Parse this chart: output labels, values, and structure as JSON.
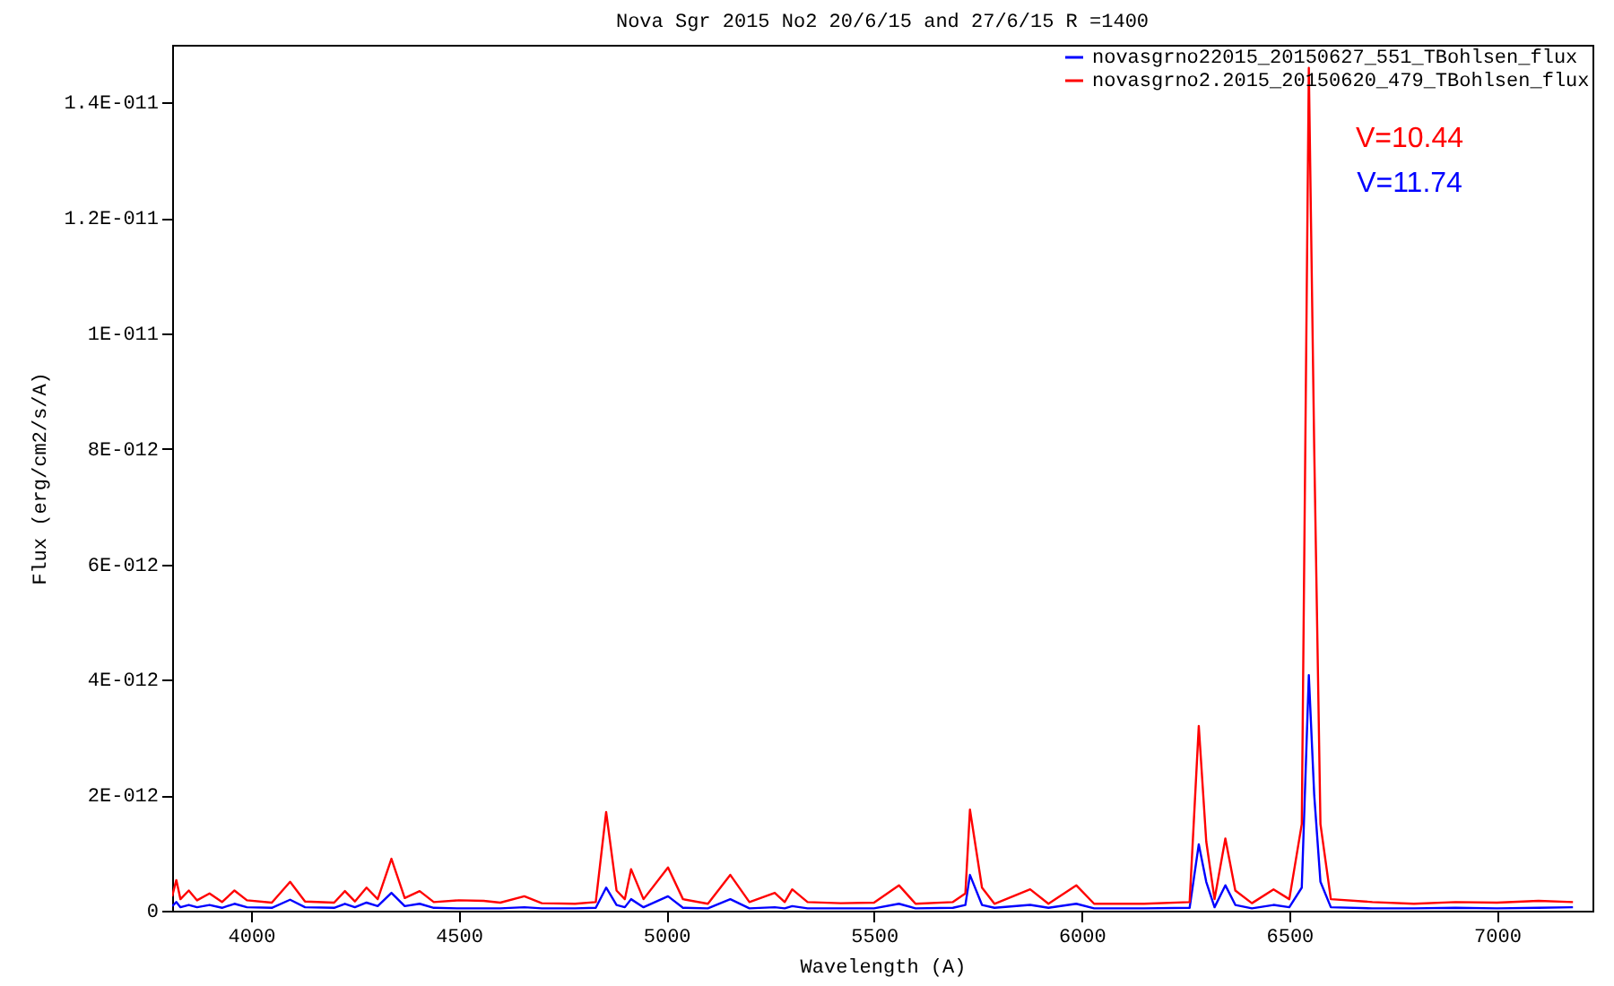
{
  "chart_data": {
    "type": "line",
    "title": "Nova Sgr 2015 No2 20/6/15 and 27/6/15 R =1400",
    "xlabel": "Wavelength (A)",
    "ylabel": "Flux (erg/cm2/s/A)",
    "x": [
      3810,
      3820,
      3830,
      3850,
      3870,
      3900,
      3930,
      3960,
      3990,
      4050,
      4094,
      4130,
      4200,
      4226,
      4250,
      4278,
      4305,
      4338,
      4370,
      4406,
      4440,
      4500,
      4560,
      4600,
      4658,
      4700,
      4780,
      4830,
      4855,
      4880,
      4900,
      4915,
      4945,
      5004,
      5040,
      5100,
      5154,
      5200,
      5261,
      5285,
      5303,
      5340,
      5420,
      5500,
      5560,
      5600,
      5690,
      5720,
      5731,
      5760,
      5790,
      5876,
      5920,
      5987,
      6030,
      6150,
      6260,
      6282,
      6300,
      6320,
      6346,
      6370,
      6410,
      6462,
      6500,
      6530,
      6547,
      6560,
      6575,
      6600,
      6700,
      6800,
      6900,
      7000,
      7100,
      7183
    ],
    "series": [
      {
        "name": "novasgrno22015_20150627_551_TBohlsen_flux",
        "color": "#0000ff",
        "values": [
          8e-14,
          1.5e-13,
          6e-14,
          1e-13,
          6e-14,
          1e-13,
          5e-14,
          1.2e-13,
          6e-14,
          5e-14,
          1.9e-13,
          6e-14,
          5e-14,
          1.2e-13,
          6e-14,
          1.4e-13,
          8e-14,
          3.1e-13,
          8e-14,
          1.2e-13,
          5e-14,
          4e-14,
          4e-14,
          4e-14,
          6e-14,
          4e-14,
          4e-14,
          5e-14,
          4e-13,
          1e-13,
          6e-14,
          2e-13,
          6e-14,
          2.5e-13,
          5e-14,
          4e-14,
          2e-13,
          4e-14,
          6e-14,
          4e-14,
          8e-14,
          4e-14,
          4e-14,
          4e-14,
          1.2e-13,
          4e-14,
          5e-14,
          1e-13,
          6.2e-13,
          1e-13,
          5e-14,
          1e-13,
          5e-14,
          1.2e-13,
          4e-14,
          4e-14,
          5e-14,
          1.15e-12,
          5e-13,
          6e-14,
          4.4e-13,
          1e-13,
          4e-14,
          1e-13,
          6e-14,
          4e-13,
          4.08e-12,
          2e-12,
          5e-13,
          6e-14,
          4e-14,
          4e-14,
          5e-14,
          4e-14,
          5e-14,
          6e-14
        ]
      },
      {
        "name": "novasgrno2.2015_20150620_479_TBohlsen_flux",
        "color": "#ff0000",
        "values": [
          2.5e-13,
          5.3e-13,
          2e-13,
          3.5e-13,
          1.8e-13,
          3e-13,
          1.5e-13,
          3.5e-13,
          1.8e-13,
          1.4e-13,
          5e-13,
          1.6e-13,
          1.4e-13,
          3.4e-13,
          1.6e-13,
          4e-13,
          2e-13,
          9e-13,
          2.2e-13,
          3.4e-13,
          1.5e-13,
          1.8e-13,
          1.7e-13,
          1.4e-13,
          2.5e-13,
          1.3e-13,
          1.2e-13,
          1.5e-13,
          1.71e-12,
          3.5e-13,
          2e-13,
          7.2e-13,
          2e-13,
          7.5e-13,
          2e-13,
          1.2e-13,
          6.2e-13,
          1.5e-13,
          3.1e-13,
          1.5e-13,
          3.7e-13,
          1.5e-13,
          1.3e-13,
          1.4e-13,
          4.4e-13,
          1.2e-13,
          1.5e-13,
          3e-13,
          1.75e-12,
          4e-13,
          1.2e-13,
          3.7e-13,
          1.2e-13,
          4.4e-13,
          1.2e-13,
          1.2e-13,
          1.5e-13,
          3.2e-12,
          1.2e-12,
          2e-13,
          1.25e-12,
          3.5e-13,
          1.3e-13,
          3.7e-13,
          2e-13,
          1.5e-12,
          1.46e-11,
          8e-12,
          1.5e-12,
          2e-13,
          1.5e-13,
          1.2e-13,
          1.5e-13,
          1.4e-13,
          1.7e-13,
          1.5e-13
        ]
      }
    ],
    "xlim": [
      3810,
      7230
    ],
    "xticks": [
      4000,
      4500,
      5000,
      5500,
      6000,
      6500,
      7000
    ],
    "ylim": [
      0,
      1.5e-11
    ],
    "yticks": [
      {
        "value": 0,
        "label": "0"
      },
      {
        "value": 2e-12,
        "label": "2E-012"
      },
      {
        "value": 4e-12,
        "label": "4E-012"
      },
      {
        "value": 6e-12,
        "label": "6E-012"
      },
      {
        "value": 8e-12,
        "label": "8E-012"
      },
      {
        "value": 1e-11,
        "label": "1E-011"
      },
      {
        "value": 1.2e-11,
        "label": "1.2E-011"
      },
      {
        "value": 1.4e-11,
        "label": "1.4E-011"
      }
    ],
    "annotations": [
      "V=10.44",
      "V=11.74"
    ],
    "legend": "top right",
    "grid": false
  }
}
